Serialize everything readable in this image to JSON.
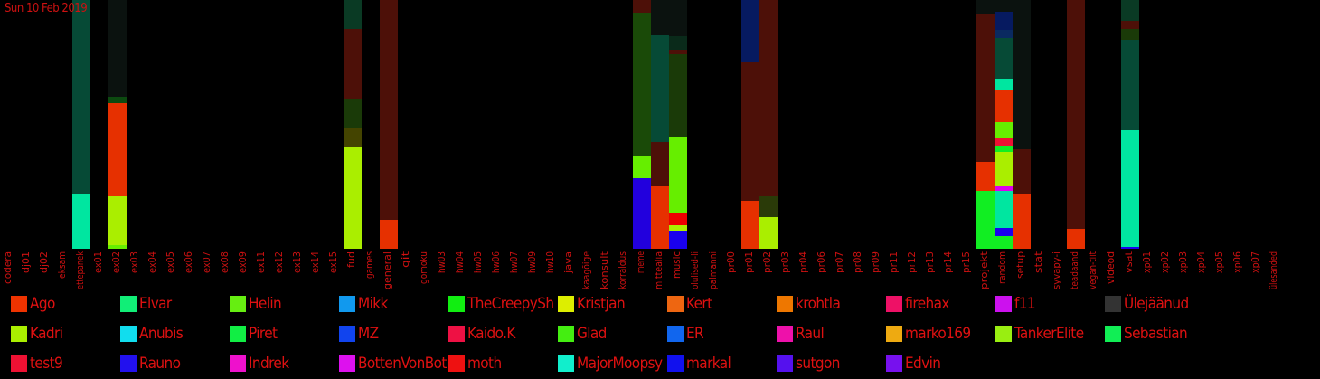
{
  "date": "Sun 10 Feb 2019",
  "chart_data": {
    "type": "bar",
    "stacked": true,
    "categories": [
      "codera",
      "dj01",
      "dj02",
      "eksam",
      "ettepanek",
      "ex01",
      "ex02",
      "ex03",
      "ex04",
      "ex05",
      "ex06",
      "ex07",
      "ex08",
      "ex09",
      "ex11",
      "ex12",
      "ex13",
      "ex14",
      "ex15",
      "fud",
      "games",
      "general",
      "git",
      "gomoku",
      "hw03",
      "hw04",
      "hw05",
      "hw06",
      "hw07",
      "hw09",
      "hw10",
      "java",
      "kaagõige",
      "konsult",
      "korraldus",
      "meme",
      "mittealia",
      "music",
      "olulised-li",
      "palmanni",
      "pr00",
      "pr01",
      "pr02",
      "pr03",
      "pr04",
      "pr06",
      "pr07",
      "pr08",
      "pr09",
      "pr11",
      "pr12",
      "pr13",
      "pr14",
      "pr15",
      "projekt",
      "random",
      "setup",
      "stat",
      "syvapy-i",
      "teadaand",
      "vegan-tiit",
      "videod",
      "vsat",
      "xp01",
      "xp02",
      "xp03",
      "xp04",
      "xp05",
      "xp06",
      "xp07",
      "ülesanded"
    ],
    "bars": [
      {
        "category": "ettepanek",
        "segments": [
          {
            "color": "#00e6a0",
            "value": 60
          },
          {
            "color": "#064a36",
            "value": 215
          }
        ]
      },
      {
        "category": "ex02",
        "segments": [
          {
            "color": "#66ee00",
            "value": 4
          },
          {
            "color": "#aaee00",
            "value": 54
          },
          {
            "color": "#e63000",
            "value": 103
          },
          {
            "color": "#0c4a10",
            "value": 7
          },
          {
            "color": "#0b120f",
            "value": 107
          }
        ]
      },
      {
        "category": "fud",
        "segments": [
          {
            "color": "#aaee00",
            "value": 112
          },
          {
            "color": "#444400",
            "value": 21
          },
          {
            "color": "#1a3a08",
            "value": 32
          },
          {
            "color": "#4d1008",
            "value": 78
          },
          {
            "color": "#0a3a24",
            "value": 32
          }
        ]
      },
      {
        "category": "general",
        "segments": [
          {
            "color": "#e63000",
            "value": 32
          },
          {
            "color": "#4d1008",
            "value": 243
          }
        ]
      },
      {
        "category": "meme",
        "segments": [
          {
            "color": "#2200dd",
            "value": 78
          },
          {
            "color": "#66ee00",
            "value": 24
          },
          {
            "color": "#1a4a08",
            "value": 159
          },
          {
            "color": "#4d1008",
            "value": 14
          }
        ]
      },
      {
        "category": "mittealia",
        "segments": [
          {
            "color": "#e63000",
            "value": 69
          },
          {
            "color": "#4d1008",
            "value": 49
          },
          {
            "color": "#064a36",
            "value": 118
          },
          {
            "color": "#0b120f",
            "value": 39
          }
        ]
      },
      {
        "category": "music",
        "segments": [
          {
            "color": "#1a00ee",
            "value": 20
          },
          {
            "color": "#aaee00",
            "value": 6
          },
          {
            "color": "#ee0000",
            "value": 13
          },
          {
            "color": "#66ee00",
            "value": 84
          },
          {
            "color": "#1a3a08",
            "value": 92
          },
          {
            "color": "#4d1008",
            "value": 5
          },
          {
            "color": "#0a2a1a",
            "value": 15
          },
          {
            "color": "#0b120f",
            "value": 40
          }
        ]
      },
      {
        "category": "pr01",
        "segments": [
          {
            "color": "#e63000",
            "value": 53
          },
          {
            "color": "#4d1008",
            "value": 154
          },
          {
            "color": "#061a60",
            "value": 68
          }
        ]
      },
      {
        "category": "pr02",
        "segments": [
          {
            "color": "#aaee00",
            "value": 35
          },
          {
            "color": "#2a3a08",
            "value": 23
          },
          {
            "color": "#4d1008",
            "value": 217
          }
        ]
      },
      {
        "category": "projekt",
        "segments": [
          {
            "color": "#11ee22",
            "value": 64
          },
          {
            "color": "#e63000",
            "value": 32
          },
          {
            "color": "#4d1008",
            "value": 163
          },
          {
            "color": "#0b120f",
            "value": 16
          }
        ]
      },
      {
        "category": "random",
        "segments": [
          {
            "color": "#11ee22",
            "value": 14
          },
          {
            "color": "#1a00ee",
            "value": 9
          },
          {
            "color": "#00e6a0",
            "value": 41
          },
          {
            "color": "#dd00ee",
            "value": 5
          },
          {
            "color": "#aaee00",
            "value": 38
          },
          {
            "color": "#11ee22",
            "value": 7
          },
          {
            "color": "#ee1133",
            "value": 8
          },
          {
            "color": "#66ee00",
            "value": 18
          },
          {
            "color": "#e63000",
            "value": 36
          },
          {
            "color": "#00e6a0",
            "value": 12
          },
          {
            "color": "#064a36",
            "value": 45
          },
          {
            "color": "#0a2a60",
            "value": 9
          },
          {
            "color": "#061a60",
            "value": 20
          },
          {
            "color": "#0b120f",
            "value": 13
          }
        ]
      },
      {
        "category": "setup",
        "segments": [
          {
            "color": "#e63000",
            "value": 60
          },
          {
            "color": "#4d1008",
            "value": 50
          },
          {
            "color": "#0b120f",
            "value": 165
          }
        ]
      },
      {
        "category": "teadaand",
        "segments": [
          {
            "color": "#e63000",
            "value": 22
          },
          {
            "color": "#4d1008",
            "value": 253
          }
        ]
      },
      {
        "category": "vsat",
        "segments": [
          {
            "color": "#1a00ee",
            "value": 2
          },
          {
            "color": "#00e6a0",
            "value": 129
          },
          {
            "color": "#064a36",
            "value": 100
          },
          {
            "color": "#1a3a08",
            "value": 12
          },
          {
            "color": "#4d1008",
            "value": 9
          },
          {
            "color": "#0a3a24",
            "value": 23
          }
        ]
      }
    ],
    "ylim": [
      0,
      275
    ],
    "legend_placement": "bottom",
    "title": "",
    "xlabel": "",
    "ylabel": ""
  },
  "legend": [
    {
      "label": "Ago",
      "color": "#ee3300"
    },
    {
      "label": "Elvar",
      "color": "#11ee77"
    },
    {
      "label": "Helin",
      "color": "#66ee11"
    },
    {
      "label": "Mikk",
      "color": "#1199ee"
    },
    {
      "label": "TheCreepySh",
      "color": "#11ee11"
    },
    {
      "label": "Kristjan",
      "color": "#ddee00"
    },
    {
      "label": "Kert",
      "color": "#ee6611"
    },
    {
      "label": "krohtla",
      "color": "#ee7700"
    },
    {
      "label": "firehax",
      "color": "#ee1166"
    },
    {
      "label": "f11",
      "color": "#cc11ee"
    },
    {
      "label": "Ülejäänud",
      "color": "#333333"
    },
    {
      "label": "Kadri",
      "color": "#aaee00"
    },
    {
      "label": "Anubis",
      "color": "#11ddee"
    },
    {
      "label": "Piret",
      "color": "#11ee44"
    },
    {
      "label": "MZ",
      "color": "#1144ee"
    },
    {
      "label": "Kaido.K",
      "color": "#ee1144"
    },
    {
      "label": "Glad",
      "color": "#44ee11"
    },
    {
      "label": "ER",
      "color": "#1166ee"
    },
    {
      "label": "Raul",
      "color": "#ee11aa"
    },
    {
      "label": "marko169",
      "color": "#eeaa11"
    },
    {
      "label": "TankerElite",
      "color": "#99ee11"
    },
    {
      "label": "Sebastian",
      "color": "#11ee55"
    },
    {
      "label": "test9",
      "color": "#ee1133"
    },
    {
      "label": "Rauno",
      "color": "#2211ee"
    },
    {
      "label": "Indrek",
      "color": "#ee11cc"
    },
    {
      "label": "BottenVonBot",
      "color": "#dd11ee"
    },
    {
      "label": "moth",
      "color": "#ee1111"
    },
    {
      "label": "MajorMoopsy",
      "color": "#11eecc"
    },
    {
      "label": "markal",
      "color": "#1111ee"
    },
    {
      "label": "sutgon",
      "color": "#5511ee"
    },
    {
      "label": "Edvin",
      "color": "#7711ee"
    }
  ]
}
